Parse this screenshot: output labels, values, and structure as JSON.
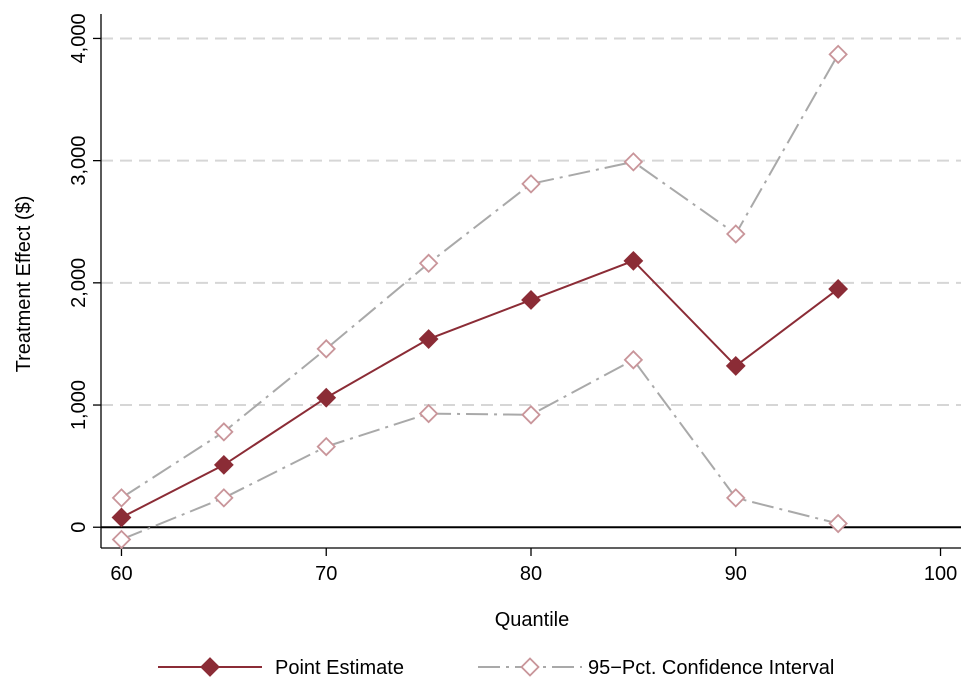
{
  "chart_data": {
    "type": "line",
    "xlabel": "Quantile",
    "ylabel": "Treatment Effect ($)",
    "xlim": [
      59,
      101
    ],
    "ylim": [
      -170,
      4200
    ],
    "x_ticks": [
      60,
      70,
      80,
      90,
      100
    ],
    "x_tick_labels": [
      "60",
      "70",
      "80",
      "90",
      "100"
    ],
    "y_ticks": [
      0,
      1000,
      2000,
      3000,
      4000
    ],
    "y_tick_labels": [
      "0",
      "1,000",
      "2,000",
      "3,000",
      "4,000"
    ],
    "grid": "horizontal dashed",
    "legend_position": "bottom",
    "x": [
      60,
      65,
      70,
      75,
      80,
      85,
      90,
      95
    ],
    "series": [
      {
        "name": "Point Estimate",
        "values": [
          80,
          510,
          1060,
          1540,
          1860,
          2180,
          1320,
          1950
        ],
        "color": "#8b2c36",
        "marker": "filled-diamond",
        "line": "solid"
      },
      {
        "name": "95−Pct. Confidence Interval",
        "role": "upper",
        "values": [
          240,
          780,
          1460,
          2160,
          2810,
          2990,
          2400,
          3870
        ],
        "color": "#a9a9a9",
        "marker_color": "#c9959a",
        "marker": "hollow-diamond",
        "line": "dash-dot"
      },
      {
        "role": "lower",
        "values": [
          -100,
          240,
          660,
          930,
          920,
          1370,
          240,
          30
        ],
        "color": "#a9a9a9",
        "marker_color": "#c9959a",
        "marker": "hollow-diamond",
        "line": "dash-dot"
      }
    ],
    "reference_line_y": 0
  }
}
